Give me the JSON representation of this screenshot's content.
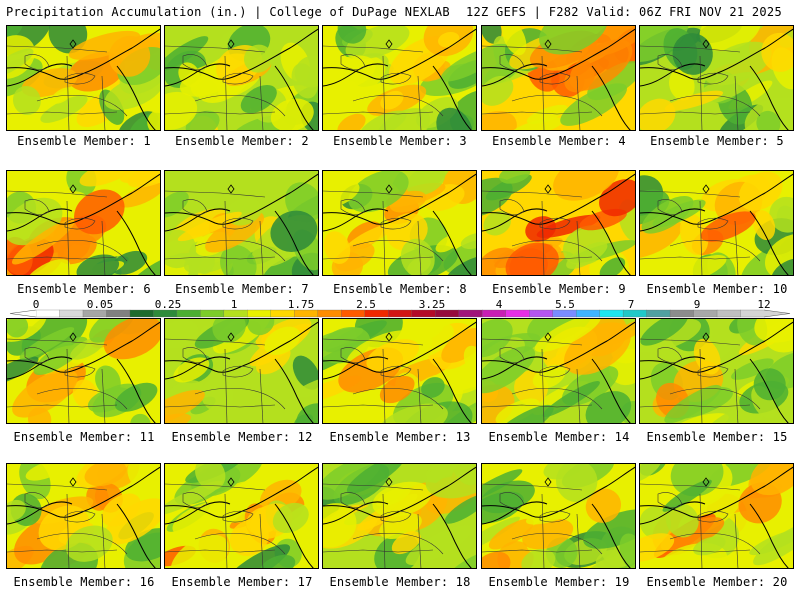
{
  "header": {
    "left_title": "Precipitation Accumulation (in.) | College of DuPage NEXLAB",
    "right_title": "12Z GEFS | F282 Valid: 06Z FRI NOV 21 2025"
  },
  "member_label_prefix": "Ensemble Member: ",
  "members": [
    {
      "id": 1,
      "label": "Ensemble Member: 1",
      "wetness": 0.55
    },
    {
      "id": 2,
      "label": "Ensemble Member: 2",
      "wetness": 0.45
    },
    {
      "id": 3,
      "label": "Ensemble Member: 3",
      "wetness": 0.5
    },
    {
      "id": 4,
      "label": "Ensemble Member: 4",
      "wetness": 0.85
    },
    {
      "id": 5,
      "label": "Ensemble Member: 5",
      "wetness": 0.4
    },
    {
      "id": 6,
      "label": "Ensemble Member: 6",
      "wetness": 0.7
    },
    {
      "id": 7,
      "label": "Ensemble Member: 7",
      "wetness": 0.45
    },
    {
      "id": 8,
      "label": "Ensemble Member: 8",
      "wetness": 0.55
    },
    {
      "id": 9,
      "label": "Ensemble Member: 9",
      "wetness": 0.9
    },
    {
      "id": 10,
      "label": "Ensemble Member: 10",
      "wetness": 0.65
    },
    {
      "id": 11,
      "label": "Ensemble Member: 11",
      "wetness": 0.5
    },
    {
      "id": 12,
      "label": "Ensemble Member: 12",
      "wetness": 0.4
    },
    {
      "id": 13,
      "label": "Ensemble Member: 13",
      "wetness": 0.65
    },
    {
      "id": 14,
      "label": "Ensemble Member: 14",
      "wetness": 0.45
    },
    {
      "id": 15,
      "label": "Ensemble Member: 15",
      "wetness": 0.4
    },
    {
      "id": 16,
      "label": "Ensemble Member: 16",
      "wetness": 0.65
    },
    {
      "id": 17,
      "label": "Ensemble Member: 17",
      "wetness": 0.6
    },
    {
      "id": 18,
      "label": "Ensemble Member: 18",
      "wetness": 0.45
    },
    {
      "id": 19,
      "label": "Ensemble Member: 19",
      "wetness": 0.55
    },
    {
      "id": 20,
      "label": "Ensemble Member: 20",
      "wetness": 0.6
    }
  ],
  "colorbar": {
    "tick_labels": [
      "0",
      "0.05",
      "0.25",
      "1",
      "1.75",
      "2.5",
      "3.25",
      "4",
      "5.5",
      "7",
      "9",
      "12"
    ],
    "tick_values": [
      0,
      0.05,
      0.25,
      1,
      1.75,
      2.5,
      3.25,
      4,
      5.5,
      7,
      9,
      12
    ],
    "colors": [
      "#ffffff",
      "#d9d9d9",
      "#a6a6a6",
      "#808080",
      "#1e6b2e",
      "#2e8b3a",
      "#4caf32",
      "#7ccc2a",
      "#b4e01e",
      "#e8f000",
      "#ffd800",
      "#ffb400",
      "#ff8c00",
      "#ff5a00",
      "#f02800",
      "#d21414",
      "#b40a28",
      "#960a3c",
      "#a0147a",
      "#c81eb4",
      "#e62ee6",
      "#b455f0",
      "#7a8cff",
      "#40b4ff",
      "#1ee6f0",
      "#20c8c8",
      "#50a0a0",
      "#8c8c8c",
      "#a8a8a8",
      "#c0c0c0",
      "#d4d4d4"
    ]
  }
}
